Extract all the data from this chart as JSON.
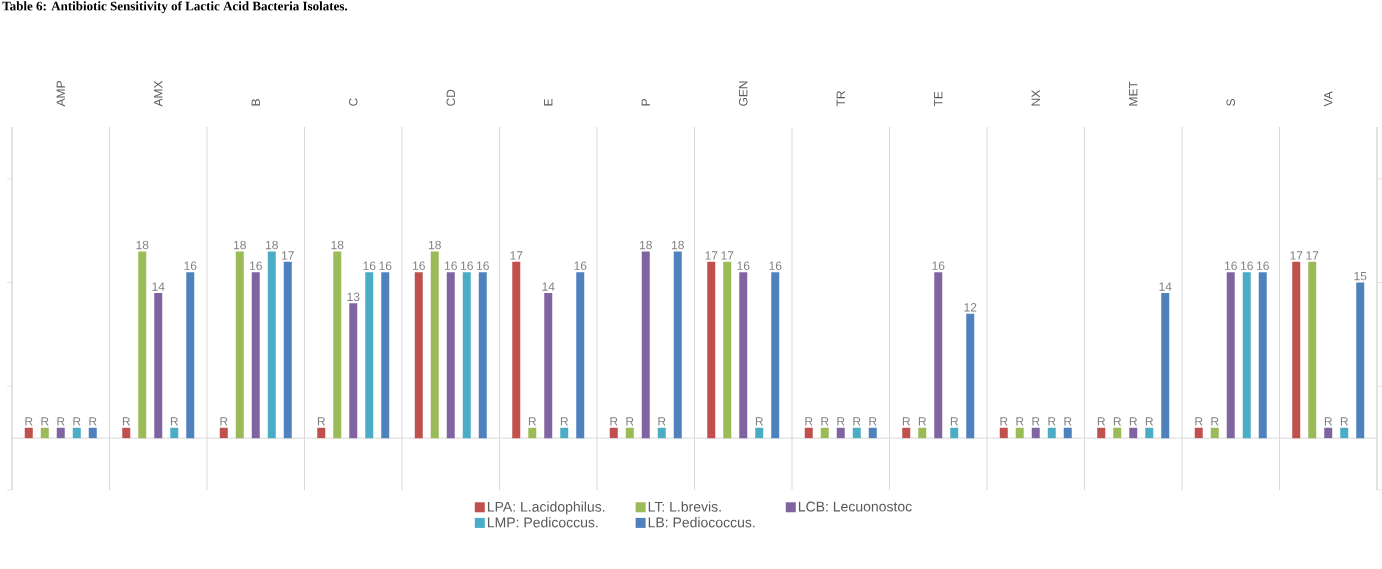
{
  "chart_data": {
    "type": "bar",
    "title": "Table 6: Antibiotic Sensitivity of Lactic Acid Bacteria Isolates.",
    "categories": [
      "AMP",
      "AMX",
      "B",
      "C",
      "CD",
      "E",
      "P",
      "GEN",
      "TR",
      "TE",
      "NX",
      "MET",
      "S",
      "VA"
    ],
    "series": [
      {
        "name": "LPA:  L.acidophilus.",
        "color": "#c0504d",
        "values": [
          1,
          1,
          1,
          1,
          16,
          17,
          1,
          17,
          1,
          1,
          1,
          1,
          1,
          17
        ],
        "value_labels": [
          "R",
          "R",
          "R",
          "R",
          "16",
          "17",
          "R",
          "17",
          "R",
          "R",
          "R",
          "R",
          "R",
          "17"
        ]
      },
      {
        "name": "LT:  L.brevis.",
        "color": "#9bbb59",
        "values": [
          1,
          18,
          18,
          18,
          18,
          1,
          1,
          17,
          1,
          1,
          1,
          1,
          1,
          17
        ],
        "value_labels": [
          "R",
          "18",
          "18",
          "18",
          "18",
          "R",
          "R",
          "17",
          "R",
          "R",
          "R",
          "R",
          "R",
          "17"
        ]
      },
      {
        "name": "LCB:  Lecuonostoc",
        "color": "#8064a2",
        "values": [
          1,
          14,
          16,
          13,
          16,
          14,
          18,
          16,
          1,
          16,
          1,
          1,
          16,
          1
        ],
        "value_labels": [
          "R",
          "14",
          "16",
          "13",
          "16",
          "14",
          "18",
          "16",
          "R",
          "16",
          "R",
          "R",
          "16",
          "R"
        ]
      },
      {
        "name": "LMP:  Pedicoccus.",
        "color": "#4bacc6",
        "values": [
          1,
          1,
          18,
          16,
          16,
          1,
          1,
          1,
          1,
          1,
          1,
          1,
          16,
          1
        ],
        "value_labels": [
          "R",
          "R",
          "18",
          "16",
          "16",
          "R",
          "R",
          "R",
          "R",
          "R",
          "R",
          "R",
          "16",
          "R"
        ]
      },
      {
        "name": "LB:  Pediococcus.",
        "color": "#4f81bd",
        "values": [
          1,
          16,
          17,
          16,
          16,
          16,
          18,
          16,
          1,
          12,
          1,
          14,
          16,
          15
        ],
        "value_labels": [
          "R",
          "16",
          "17",
          "16",
          "16",
          "16",
          "18",
          "16",
          "R",
          "12",
          "R",
          "14",
          "16",
          "15"
        ]
      }
    ],
    "ylim": [
      -5,
      30
    ],
    "yticks": [
      {
        "value": -5,
        "label": null
      },
      {
        "value": 5,
        "label": null
      },
      {
        "value": 15,
        "label": null
      },
      {
        "value": 25,
        "label": null
      }
    ],
    "tick_labels": "x",
    "grid": "x",
    "legend": "bottom"
  }
}
